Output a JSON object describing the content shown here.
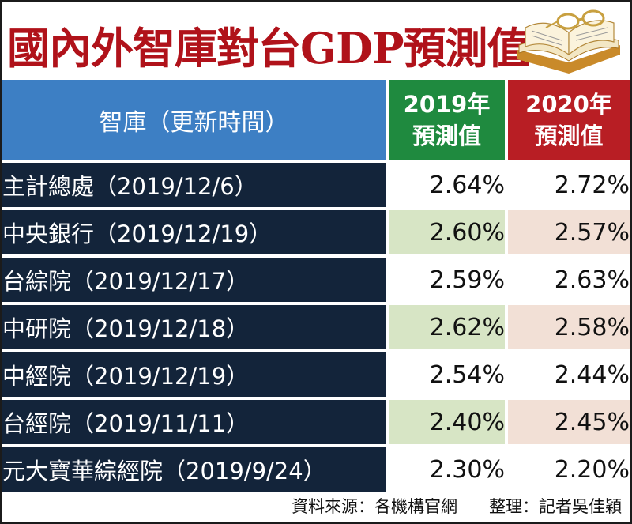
{
  "title": "國內外智庫對台GDP預測值",
  "header": {
    "name_col": "智庫（更新時間）",
    "col_2019_line1": "2019年",
    "col_2019_line2": "預測值",
    "col_2020_line1": "2020年",
    "col_2020_line2": "預測值"
  },
  "colors": {
    "title_red": "#b0121a",
    "header_blue": "#3d7fc4",
    "header_green": "#1f8a3f",
    "header_red": "#b81e24",
    "row_navy": "#13243a",
    "tint_green": "#d7e5c5",
    "tint_peach": "#f2e0d6"
  },
  "icons": {
    "decor": "open-book-with-glasses-icon"
  },
  "chart_data": {
    "type": "table",
    "title": "國內外智庫對台GDP預測值",
    "columns": [
      "智庫（更新時間）",
      "2019年預測值",
      "2020年預測值"
    ],
    "rows": [
      {
        "name": "主計總處（2019/12/6）",
        "y2019": "2.64%",
        "y2020": "2.72%"
      },
      {
        "name": "中央銀行（2019/12/19）",
        "y2019": "2.60%",
        "y2020": "2.57%"
      },
      {
        "name": "台綜院（2019/12/17）",
        "y2019": "2.59%",
        "y2020": "2.63%"
      },
      {
        "name": "中研院（2019/12/18）",
        "y2019": "2.62%",
        "y2020": "2.58%"
      },
      {
        "name": "中經院（2019/12/19）",
        "y2019": "2.54%",
        "y2020": "2.44%"
      },
      {
        "name": "台經院（2019/11/11）",
        "y2019": "2.40%",
        "y2020": "2.45%"
      },
      {
        "name": "元大寶華綜經院（2019/9/24）",
        "y2019": "2.30%",
        "y2020": "2.20%"
      }
    ]
  },
  "footer": {
    "source": "資料來源：各機構官網",
    "credit": "整理：記者吳佳穎"
  }
}
